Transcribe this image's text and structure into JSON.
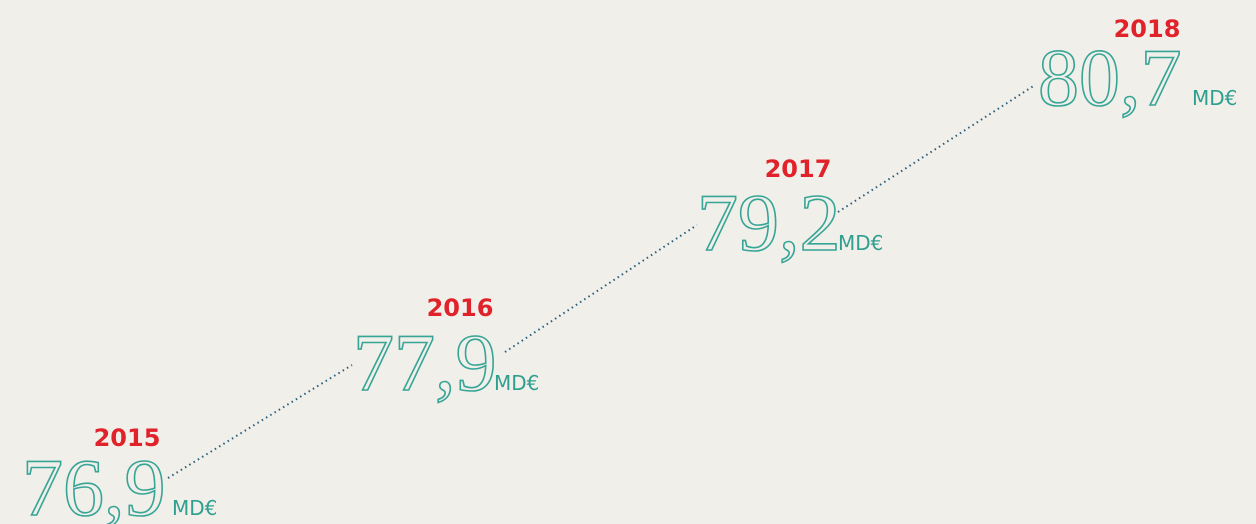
{
  "items": [
    {
      "year": "2015",
      "value": "76,9",
      "unit": "MD€"
    },
    {
      "year": "2016",
      "value": "77,9",
      "unit": "MD€"
    },
    {
      "year": "2017",
      "value": "79,2",
      "unit": "MD€"
    },
    {
      "year": "2018",
      "value": "80,7",
      "unit": "MD€"
    }
  ]
}
